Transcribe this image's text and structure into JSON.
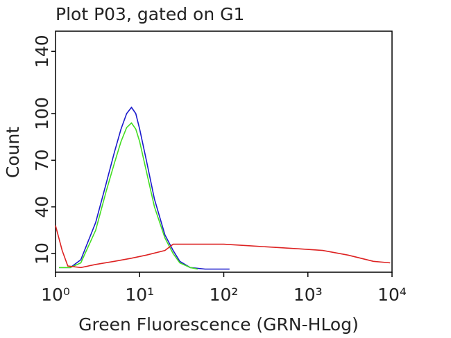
{
  "chart_data": {
    "type": "line",
    "title": "Plot P03, gated on G1",
    "xlabel": "Green Fluorescence (GRN-HLog)",
    "ylabel": "Count",
    "xscale": "log",
    "xlim": [
      1,
      10000
    ],
    "xticks": [
      {
        "value": 1,
        "label": "10⁰"
      },
      {
        "value": 10,
        "label": "10¹"
      },
      {
        "value": 100,
        "label": "10²"
      },
      {
        "value": 1000,
        "label": "10³"
      },
      {
        "value": 10000,
        "label": "10⁴"
      }
    ],
    "ylim": [
      -2,
      153
    ],
    "yticks": [
      10,
      40,
      70,
      100,
      140
    ],
    "series": [
      {
        "color": "#1a1acc",
        "x": [
          1.1,
          1.5,
          2,
          3,
          4,
          5,
          6,
          7,
          8,
          9,
          10,
          12,
          15,
          20,
          25,
          30,
          40,
          60,
          117
        ],
        "values": [
          1,
          1,
          6,
          30,
          55,
          75,
          90,
          100,
          104,
          100,
          90,
          70,
          45,
          22,
          12,
          5,
          1,
          0,
          0
        ]
      },
      {
        "color": "#44dd22",
        "x": [
          1.1,
          1.5,
          2,
          3,
          4,
          5,
          6,
          7,
          8,
          9,
          10,
          12,
          15,
          20,
          25,
          30,
          40,
          49
        ],
        "values": [
          1,
          1,
          4,
          25,
          50,
          68,
          82,
          91,
          94,
          90,
          82,
          63,
          40,
          20,
          10,
          4,
          1,
          0
        ]
      },
      {
        "color": "#dd2222",
        "x": [
          1,
          1.2,
          1.4,
          2,
          3,
          5,
          8,
          12,
          20,
          25,
          40,
          100,
          200,
          400,
          800,
          1500,
          3000,
          6000,
          9500
        ],
        "values": [
          28,
          12,
          2,
          1,
          3,
          5,
          7,
          9,
          12,
          16,
          16,
          16,
          15,
          14,
          13,
          12,
          9,
          5,
          4
        ]
      }
    ]
  }
}
